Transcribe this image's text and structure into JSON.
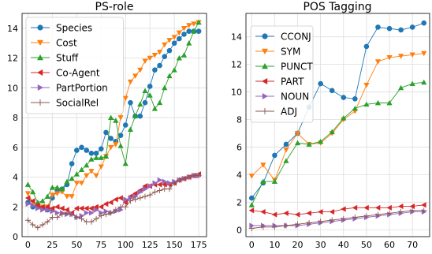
{
  "chart_data": [
    {
      "type": "line",
      "title": "PS-role",
      "xlabel": "",
      "ylabel": "",
      "xlim": [
        -6,
        183
      ],
      "ylim": [
        0,
        15
      ],
      "xticks": [
        "0",
        "25",
        "50",
        "75",
        "100",
        "125",
        "150",
        "175"
      ],
      "yticks": [
        "0",
        "2",
        "4",
        "6",
        "8",
        "10",
        "12",
        "14"
      ],
      "grid": true,
      "legend_position": "top-left",
      "series": [
        {
          "name": "Species",
          "color": "#1f77b4",
          "marker": "circle",
          "x": [
            0,
            5,
            10,
            15,
            20,
            25,
            30,
            35,
            40,
            45,
            50,
            55,
            60,
            65,
            70,
            75,
            80,
            85,
            90,
            95,
            100,
            105,
            110,
            115,
            120,
            125,
            130,
            135,
            140,
            145,
            150,
            155,
            160,
            165,
            170,
            175
          ],
          "y": [
            2.3,
            2.0,
            2.0,
            1.9,
            1.8,
            2.6,
            3.1,
            3.2,
            3.5,
            4.9,
            5.8,
            6.0,
            5.8,
            5.6,
            5.6,
            5.9,
            7.0,
            6.6,
            6.4,
            6.8,
            7.5,
            9.0,
            8.1,
            8.1,
            9.0,
            10.1,
            11.2,
            11.5,
            12.1,
            12.5,
            13.0,
            13.3,
            13.6,
            13.8,
            13.8,
            13.8
          ]
        },
        {
          "name": "Cost",
          "color": "#ff7f0e",
          "marker": "triangle-down",
          "x": [
            0,
            5,
            10,
            15,
            20,
            25,
            30,
            35,
            40,
            45,
            50,
            55,
            60,
            65,
            70,
            75,
            80,
            85,
            90,
            95,
            100,
            105,
            110,
            115,
            120,
            125,
            130,
            135,
            140,
            145,
            150,
            155,
            160,
            165,
            170,
            175
          ],
          "y": [
            2.9,
            2.3,
            2.0,
            2.0,
            2.0,
            2.8,
            2.9,
            3.0,
            2.7,
            2.7,
            3.6,
            3.6,
            4.1,
            4.4,
            4.1,
            4.7,
            5.4,
            6.0,
            6.2,
            8.0,
            9.3,
            10.4,
            10.8,
            11.2,
            11.8,
            12.0,
            12.2,
            12.4,
            12.9,
            13.2,
            13.4,
            13.7,
            14.0,
            14.2,
            14.3,
            14.4
          ]
        },
        {
          "name": "Stuff",
          "color": "#2ca02c",
          "marker": "triangle-up",
          "x": [
            0,
            5,
            10,
            15,
            20,
            25,
            30,
            35,
            40,
            45,
            50,
            55,
            60,
            65,
            70,
            75,
            80,
            85,
            90,
            95,
            100,
            105,
            110,
            115,
            120,
            125,
            130,
            135,
            140,
            145,
            150,
            155,
            160,
            165,
            170,
            175
          ],
          "y": [
            3.5,
            3.0,
            2.3,
            2.4,
            2.7,
            3.3,
            3.3,
            3.2,
            3.7,
            3.9,
            4.2,
            4.5,
            4.8,
            5.2,
            5.3,
            5.3,
            5.4,
            8.0,
            7.8,
            6.1,
            4.9,
            7.2,
            8.1,
            8.9,
            9.8,
            9.5,
            8.6,
            9.0,
            10.0,
            10.8,
            11.2,
            12.0,
            12.2,
            13.0,
            13.8,
            14.4
          ]
        },
        {
          "name": "Co-Agent",
          "color": "#d62728",
          "marker": "triangle-left",
          "x": [
            0,
            5,
            10,
            15,
            20,
            25,
            30,
            35,
            40,
            45,
            50,
            55,
            60,
            65,
            70,
            75,
            80,
            85,
            90,
            95,
            100,
            105,
            110,
            115,
            120,
            125,
            130,
            135,
            140,
            145,
            150,
            155,
            160,
            165,
            170,
            175
          ],
          "y": [
            2.6,
            2.4,
            2.1,
            2.0,
            2.0,
            1.9,
            2.0,
            1.9,
            1.8,
            1.6,
            1.9,
            1.9,
            1.9,
            1.9,
            2.0,
            2.0,
            2.2,
            2.3,
            2.5,
            2.6,
            2.3,
            2.7,
            2.9,
            3.1,
            3.4,
            3.4,
            3.5,
            3.5,
            3.5,
            3.5,
            3.6,
            3.8,
            3.9,
            4.0,
            4.1,
            4.2
          ]
        },
        {
          "name": "PartPortion",
          "color": "#9467bd",
          "marker": "triangle-right",
          "x": [
            0,
            5,
            10,
            15,
            20,
            25,
            30,
            35,
            40,
            45,
            50,
            55,
            60,
            65,
            70,
            75,
            80,
            85,
            90,
            95,
            100,
            105,
            110,
            115,
            120,
            125,
            130,
            135,
            140,
            145,
            150,
            155,
            160,
            165,
            170,
            175
          ],
          "y": [
            2.2,
            2.1,
            1.9,
            1.8,
            1.8,
            1.7,
            1.6,
            1.6,
            1.5,
            1.5,
            1.3,
            1.4,
            1.6,
            1.6,
            1.8,
            1.6,
            1.7,
            1.6,
            1.7,
            1.8,
            2.5,
            2.6,
            2.7,
            3.0,
            3.2,
            3.4,
            3.6,
            3.8,
            3.7,
            3.6,
            3.7,
            3.8,
            3.9,
            4.0,
            4.1,
            4.1
          ]
        },
        {
          "name": "SocialRel",
          "color": "#8c564b",
          "marker": "plus",
          "x": [
            0,
            5,
            10,
            15,
            20,
            25,
            30,
            35,
            40,
            45,
            50,
            55,
            60,
            65,
            70,
            75,
            80,
            85,
            90,
            95,
            100,
            105,
            110,
            115,
            120,
            125,
            130,
            135,
            140,
            145,
            150,
            155,
            160,
            165,
            170,
            175
          ],
          "y": [
            1.1,
            0.8,
            0.6,
            0.8,
            1.0,
            1.3,
            1.3,
            1.5,
            1.6,
            1.5,
            1.3,
            1.2,
            1.0,
            1.0,
            1.2,
            1.4,
            1.5,
            1.6,
            1.8,
            2.0,
            2.0,
            2.4,
            2.5,
            2.6,
            2.7,
            2.8,
            3.0,
            3.1,
            3.2,
            3.2,
            3.6,
            3.8,
            3.9,
            4.0,
            4.1,
            4.1
          ]
        }
      ]
    },
    {
      "type": "line",
      "title": "POS Tagging",
      "xlabel": "",
      "ylabel": "",
      "xlim": [
        -2.5,
        77.5
      ],
      "ylim": [
        -0.5,
        15.7
      ],
      "xticks": [
        "0",
        "10",
        "20",
        "30",
        "40",
        "50",
        "60",
        "70"
      ],
      "yticks": [
        "0",
        "2",
        "4",
        "6",
        "8",
        "10",
        "12",
        "14"
      ],
      "grid": true,
      "legend_position": "top-left",
      "series": [
        {
          "name": "CCONJ",
          "color": "#1f77b4",
          "marker": "circle",
          "x": [
            0,
            5,
            10,
            15,
            20,
            25,
            30,
            35,
            40,
            45,
            50,
            55,
            60,
            65,
            70,
            75
          ],
          "y": [
            2.3,
            3.4,
            5.4,
            6.2,
            7.0,
            8.9,
            10.6,
            10.1,
            9.6,
            9.5,
            13.3,
            14.7,
            14.6,
            14.5,
            14.7,
            15.0
          ]
        },
        {
          "name": "SYM",
          "color": "#ff7f0e",
          "marker": "triangle-down",
          "x": [
            0,
            5,
            10,
            15,
            20,
            25,
            30,
            35,
            40,
            45,
            50,
            55,
            60,
            65,
            70,
            75
          ],
          "y": [
            3.9,
            4.7,
            3.6,
            5.8,
            7.0,
            6.2,
            6.3,
            7.0,
            8.0,
            8.6,
            10.5,
            12.2,
            12.5,
            12.6,
            12.7,
            12.8
          ]
        },
        {
          "name": "PUNCT",
          "color": "#2ca02c",
          "marker": "triangle-up",
          "x": [
            0,
            5,
            10,
            15,
            20,
            25,
            30,
            35,
            40,
            45,
            50,
            55,
            60,
            65,
            70,
            75
          ],
          "y": [
            1.8,
            3.5,
            3.5,
            5.0,
            6.3,
            6.2,
            6.4,
            7.1,
            8.1,
            8.8,
            9.1,
            9.2,
            9.2,
            10.3,
            10.6,
            10.7
          ]
        },
        {
          "name": "PART",
          "color": "#d62728",
          "marker": "triangle-left",
          "x": [
            0,
            5,
            10,
            15,
            20,
            25,
            30,
            35,
            40,
            45,
            50,
            55,
            60,
            65,
            70,
            75
          ],
          "y": [
            1.4,
            1.3,
            1.1,
            1.2,
            1.1,
            1.2,
            1.3,
            1.3,
            1.5,
            1.6,
            1.6,
            1.6,
            1.6,
            1.7,
            1.7,
            1.8
          ]
        },
        {
          "name": "NOUN",
          "color": "#9467bd",
          "marker": "triangle-right",
          "x": [
            0,
            5,
            10,
            15,
            20,
            25,
            30,
            35,
            40,
            45,
            50,
            55,
            60,
            65,
            70,
            75
          ],
          "y": [
            0.3,
            0.3,
            0.3,
            0.3,
            0.3,
            0.4,
            0.5,
            0.6,
            0.7,
            0.8,
            0.9,
            1.0,
            1.1,
            1.2,
            1.3,
            1.3
          ]
        },
        {
          "name": "ADJ",
          "color": "#8c564b",
          "marker": "plus",
          "x": [
            0,
            5,
            10,
            15,
            20,
            25,
            30,
            35,
            40,
            45,
            50,
            55,
            60,
            65,
            70,
            75
          ],
          "y": [
            0.1,
            0.2,
            0.2,
            0.3,
            0.4,
            0.5,
            0.6,
            0.7,
            0.8,
            0.9,
            1.0,
            1.1,
            1.2,
            1.3,
            1.4,
            1.4
          ]
        }
      ]
    }
  ]
}
